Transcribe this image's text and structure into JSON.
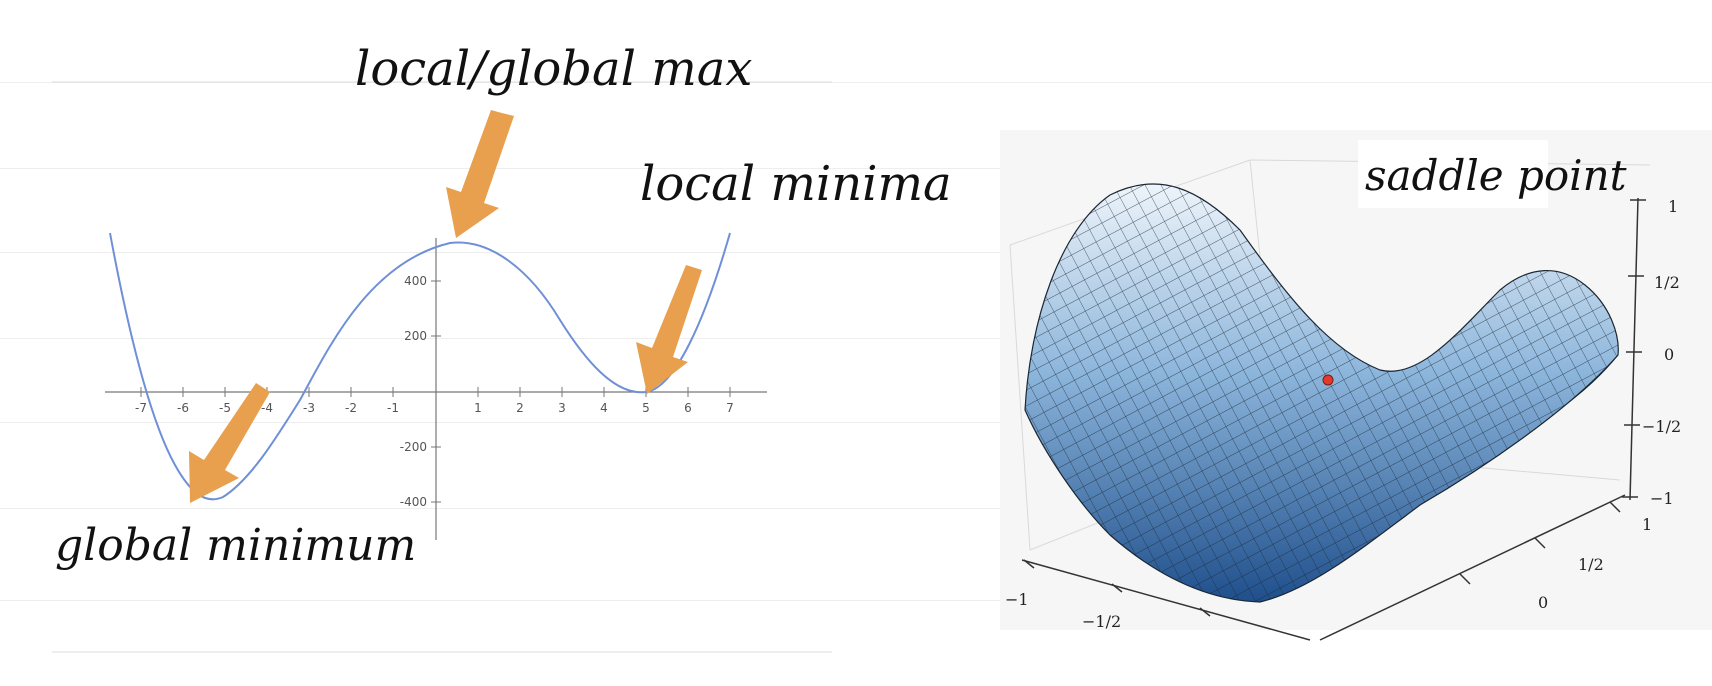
{
  "left_plot": {
    "x_ticks": [
      "-7",
      "-6",
      "-5",
      "-4",
      "-3",
      "-2",
      "-1",
      "1",
      "2",
      "3",
      "4",
      "5",
      "6",
      "7"
    ],
    "y_ticks": [
      "400",
      "200",
      "-200",
      "-400"
    ],
    "curve_color": "#6f8fd6"
  },
  "annotations": {
    "local_global_max": "local/global max",
    "local_minimum": "local minima",
    "global_minimum": "global minimum",
    "saddle_point": "saddle point"
  },
  "arrow_color": "#e8a04e",
  "right_plot": {
    "z_ticks": [
      "1",
      "1/2",
      "0",
      "−1/2",
      "−1"
    ],
    "x_ticks": [
      "−1",
      "−1/2"
    ],
    "y_ticks": [
      "1",
      "1/2",
      "0"
    ],
    "surface_color_light": "#dde9f4",
    "surface_color_dark": "#1f4f8c",
    "saddle_marker_color": "#e23b2e"
  }
}
